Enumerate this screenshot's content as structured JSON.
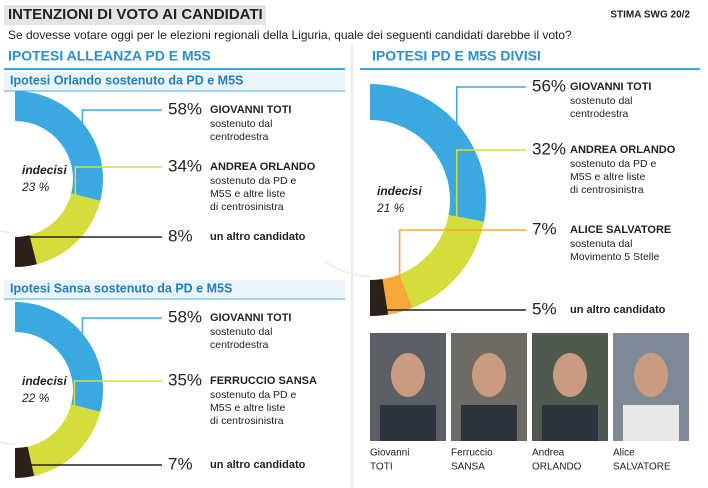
{
  "header": {
    "title": "INTENZIONI DI VOTO AI CANDIDATI",
    "source": "STIMA SWG 20/2",
    "question": "Se dovesse votare oggi per le elezioni regionali della Liguria, quale dei seguenti candidati darebbe il voto?"
  },
  "sections": [
    {
      "title": "IPOTESI ALLEANZA PD E M5S"
    },
    {
      "title": "IPOTESI PD E M5S DIVISI"
    }
  ],
  "chart_data": [
    {
      "type": "half-donut",
      "title": "Ipotesi Orlando sostenuto da PD e M5S",
      "undecided": {
        "label": "indecisi",
        "value": 23,
        "value_label": "23 %"
      },
      "categories": [
        "GIOVANNI TOTI",
        "ANDREA ORLANDO",
        "un altro candidato"
      ],
      "descriptions": [
        [
          "sostenuto dal",
          "centrodestra"
        ],
        [
          "sostenuto da PD e",
          "M5S e altre liste",
          "di centrosinistra"
        ],
        []
      ],
      "values": [
        58,
        34,
        8
      ],
      "value_labels": [
        "58%",
        "34%",
        "8%"
      ],
      "colors": [
        "#3aa8e1",
        "#d4dd3c",
        "#2b2118"
      ]
    },
    {
      "type": "half-donut",
      "title": "Ipotesi Sansa sostenuto da PD e M5S",
      "undecided": {
        "label": "indecisi",
        "value": 22,
        "value_label": "22 %"
      },
      "categories": [
        "GIOVANNI TOTI",
        "FERRUCCIO SANSA",
        "un altro candidato"
      ],
      "descriptions": [
        [
          "sostenuto dal",
          "centrodestra"
        ],
        [
          "sostenuto da PD e",
          "M5S e altre liste",
          "di centrosinistra"
        ],
        []
      ],
      "values": [
        58,
        35,
        7
      ],
      "value_labels": [
        "58%",
        "35%",
        "7%"
      ],
      "colors": [
        "#3aa8e1",
        "#d4dd3c",
        "#2b2118"
      ]
    },
    {
      "type": "half-donut",
      "undecided": {
        "label": "indecisi",
        "value": 21,
        "value_label": "21 %"
      },
      "categories": [
        "GIOVANNI TOTI",
        "ANDREA ORLANDO",
        "ALICE SALVATORE",
        "un altro candidato"
      ],
      "descriptions": [
        [
          "sostenuto dal",
          "centrodestra"
        ],
        [
          "sostenuto da PD e",
          "M5S e altre liste",
          "di centrosinistra"
        ],
        [
          "sostenuta dal",
          "Movimento 5 Stelle"
        ],
        []
      ],
      "values": [
        56,
        32,
        7,
        5
      ],
      "value_labels": [
        "56%",
        "32%",
        "7%",
        "5%"
      ],
      "colors": [
        "#3aa8e1",
        "#d4dd3c",
        "#f7a839",
        "#2b2118"
      ]
    }
  ],
  "photos": [
    {
      "first": "Giovanni",
      "last": "TOTI"
    },
    {
      "first": "Ferruccio",
      "last": "SANSA"
    },
    {
      "first": "Andrea",
      "last": "ORLANDO"
    },
    {
      "first": "Alice",
      "last": "SALVATORE"
    }
  ]
}
